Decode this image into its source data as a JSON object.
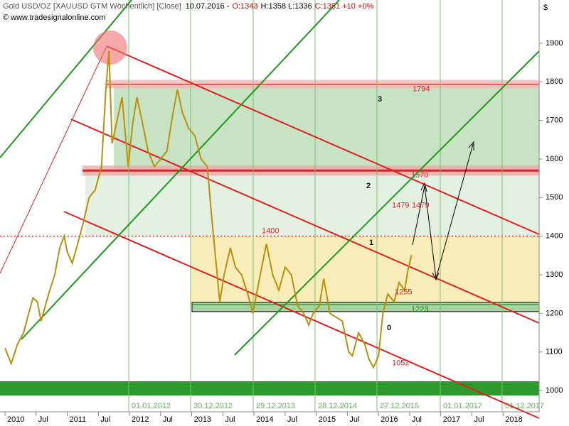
{
  "chart_data": {
    "type": "line",
    "header": {
      "instrument": "Gold USD/OZ [XAUUSD GTM  Wöchentlich] [Close]",
      "date": "10.07.2016 -",
      "open": "O:1343",
      "high_low": "H:1358 L:1336",
      "close": "C:1351 +10 +0%"
    },
    "source": "© www.tradesignalonline.com",
    "currency": "$",
    "x": [
      2010.0,
      2010.05,
      2010.1,
      2010.2,
      2010.3,
      2010.38,
      2010.45,
      2010.52,
      2010.58,
      2010.7,
      2010.8,
      2010.88,
      2010.95,
      2011.0,
      2011.08,
      2011.15,
      2011.25,
      2011.35,
      2011.45,
      2011.55,
      2011.62,
      2011.67,
      2011.72,
      2011.8,
      2011.88,
      2011.98,
      2012.05,
      2012.12,
      2012.2,
      2012.3,
      2012.4,
      2012.5,
      2012.6,
      2012.7,
      2012.77,
      2012.85,
      2012.95,
      2013.05,
      2013.15,
      2013.25,
      2013.32,
      2013.45,
      2013.52,
      2013.62,
      2013.7,
      2013.8,
      2013.9,
      2013.98,
      2014.1,
      2014.2,
      2014.3,
      2014.4,
      2014.5,
      2014.6,
      2014.7,
      2014.8,
      2014.88,
      2014.95,
      2015.05,
      2015.12,
      2015.22,
      2015.32,
      2015.42,
      2015.52,
      2015.58,
      2015.68,
      2015.78,
      2015.85,
      2015.92,
      2016.0,
      2016.07,
      2016.15,
      2016.25,
      2016.33,
      2016.42,
      2016.47,
      2016.53
    ],
    "values": [
      1110,
      1090,
      1070,
      1120,
      1150,
      1200,
      1240,
      1230,
      1180,
      1250,
      1300,
      1370,
      1400,
      1360,
      1330,
      1370,
      1430,
      1500,
      1520,
      1580,
      1780,
      1880,
      1640,
      1700,
      1760,
      1580,
      1690,
      1760,
      1700,
      1620,
      1580,
      1600,
      1620,
      1720,
      1780,
      1720,
      1680,
      1660,
      1600,
      1580,
      1450,
      1230,
      1300,
      1370,
      1320,
      1300,
      1250,
      1200,
      1300,
      1380,
      1300,
      1260,
      1320,
      1300,
      1220,
      1200,
      1170,
      1200,
      1220,
      1290,
      1200,
      1190,
      1180,
      1100,
      1090,
      1150,
      1120,
      1080,
      1060,
      1090,
      1200,
      1250,
      1230,
      1280,
      1260,
      1310,
      1351
    ],
    "color": "#b8900a",
    "xlim": [
      2009.92,
      2018.58
    ],
    "xticks": [
      {
        "value": 2010,
        "label": "2010"
      },
      {
        "value": 2010.5,
        "label": "Jul"
      },
      {
        "value": 2011,
        "label": "2011"
      },
      {
        "value": 2011.5,
        "label": "Jul"
      },
      {
        "value": 2012,
        "label": "2012"
      },
      {
        "value": 2012.5,
        "label": "Jul"
      },
      {
        "value": 2013,
        "label": "2013"
      },
      {
        "value": 2013.5,
        "label": "Jul"
      },
      {
        "value": 2014,
        "label": "2014"
      },
      {
        "value": 2014.5,
        "label": "Jul"
      },
      {
        "value": 2015,
        "label": "2015"
      },
      {
        "value": 2015.5,
        "label": "Jul"
      },
      {
        "value": 2016,
        "label": "2016"
      },
      {
        "value": 2016.5,
        "label": "Jul"
      },
      {
        "value": 2017,
        "label": "2017"
      },
      {
        "value": 2017.5,
        "label": "Jul"
      },
      {
        "value": 2018,
        "label": "2018"
      }
    ],
    "ylim": [
      945,
      2012
    ],
    "yticks": [
      1000,
      1100,
      1200,
      1300,
      1400,
      1500,
      1600,
      1700,
      1800,
      1900
    ],
    "levels": [
      1794,
      1570,
      1400,
      1223
    ],
    "price_labels": [
      1479,
      1479,
      1255,
      1052
    ],
    "zone_labels": [
      "3",
      "2",
      "1",
      "0"
    ],
    "date_markers": [
      "01.01.2012",
      "30.12.2012",
      "29.12.2013",
      "28.12.2014",
      "27.12.2015",
      "01.01.2017",
      "01.12.2017"
    ]
  }
}
